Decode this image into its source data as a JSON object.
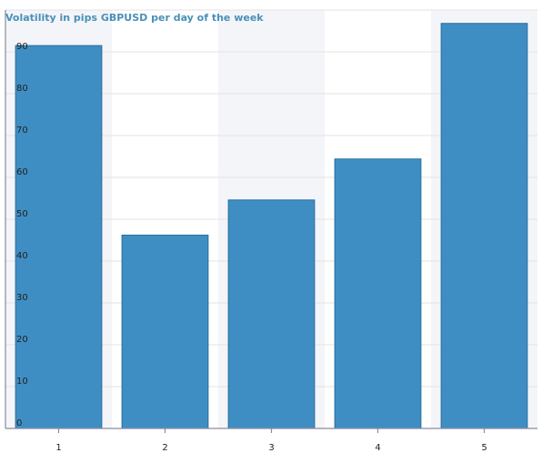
{
  "chart_data": {
    "type": "bar",
    "title": "Volatility in pips GBPUSD per day of the week",
    "categories": [
      "1",
      "2",
      "3",
      "4",
      "5"
    ],
    "values": [
      91.5,
      46.2,
      54.6,
      64.4,
      96.8
    ],
    "ylim": [
      0,
      100
    ],
    "yticks": [
      0,
      10,
      20,
      30,
      40,
      50,
      60,
      70,
      80,
      90
    ],
    "grid": true,
    "legend": "none",
    "xlabel": "",
    "ylabel": "",
    "colors": {
      "bar": "#3f8ec3",
      "bar_border": "#2b6f9e",
      "title": "#4a90b8",
      "band": "#f4f5f9",
      "grid": "#e3e3e3",
      "axis": "#8a8aa0"
    }
  }
}
